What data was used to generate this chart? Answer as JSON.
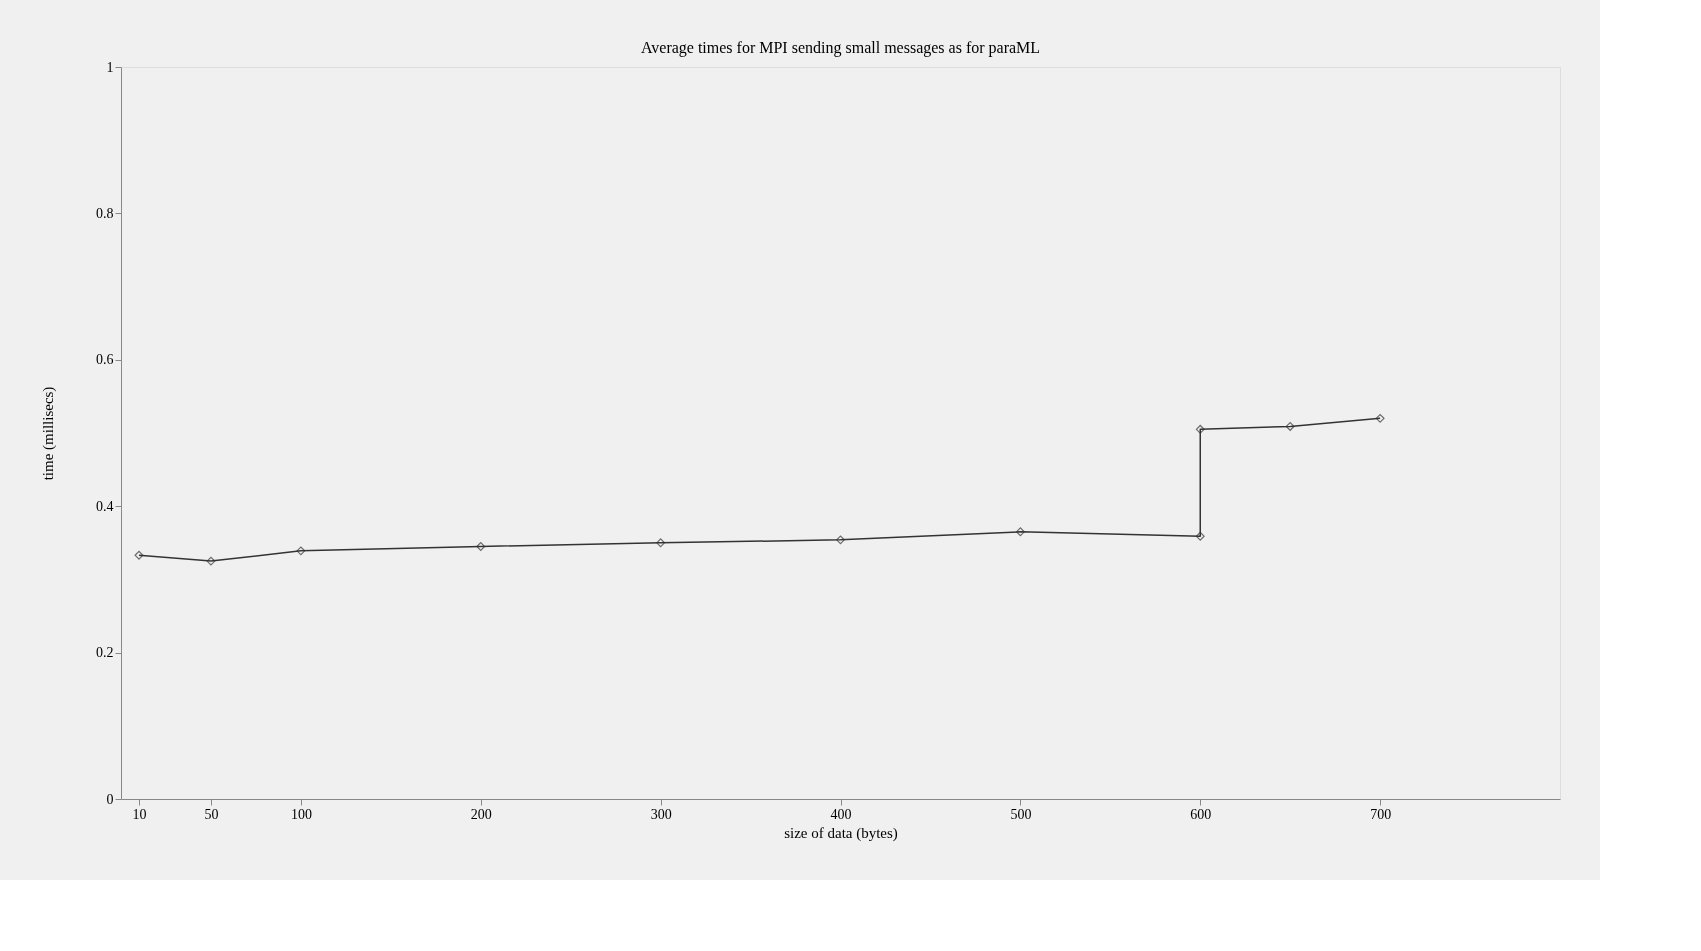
{
  "chart_data": {
    "type": "line",
    "title": "Average times for MPI sending small messages as for paraML",
    "xlabel": "size of data (bytes)",
    "ylabel": "time (millisecs)",
    "x": [
      10,
      50,
      100,
      200,
      300,
      400,
      500,
      600,
      600,
      650,
      700
    ],
    "series": [
      {
        "color": "#333333",
        "values": [
          0.333,
          0.325,
          0.339,
          0.345,
          0.35,
          0.354,
          0.365,
          0.359,
          0.505,
          0.509,
          0.52
        ]
      }
    ],
    "xlim": [
      0,
      800
    ],
    "xticks": [
      10,
      50,
      100,
      200,
      300,
      400,
      500,
      600,
      700
    ],
    "ylim": [
      0,
      1
    ],
    "yticks": [
      0,
      0.2,
      0.4,
      0.6,
      0.8,
      1
    ],
    "grid": false,
    "marker": "diamond",
    "line_style": "solid"
  }
}
